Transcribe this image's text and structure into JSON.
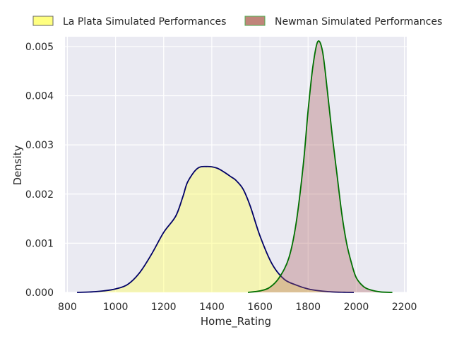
{
  "chart_data": {
    "type": "area",
    "title": "",
    "xlabel": "Home_Rating",
    "ylabel": "Density",
    "xlim": [
      790,
      2210
    ],
    "ylim": [
      0,
      0.0052
    ],
    "xticks": [
      800,
      1000,
      1200,
      1400,
      1600,
      1800,
      2000,
      2200
    ],
    "yticks": [
      0.0,
      0.001,
      0.002,
      0.003,
      0.004,
      0.005
    ],
    "ytick_labels": [
      "0.000",
      "0.001",
      "0.002",
      "0.003",
      "0.004",
      "0.005"
    ],
    "grid": true,
    "legend_position": "top, outside plot",
    "series": [
      {
        "name": "La Plata Simulated Performances",
        "fill_color": "#ffff66",
        "fill_opacity": 0.45,
        "line_color": "#000066",
        "edge_color": "#555555",
        "x": [
          840,
          900,
          950,
          1000,
          1050,
          1100,
          1150,
          1200,
          1250,
          1280,
          1300,
          1340,
          1380,
          1420,
          1450,
          1480,
          1500,
          1530,
          1560,
          1600,
          1650,
          1700,
          1750,
          1800,
          1850,
          1900,
          1950,
          1990
        ],
        "y": [
          0.0,
          1e-05,
          3e-05,
          7e-05,
          0.00016,
          0.0004,
          0.00078,
          0.00122,
          0.00155,
          0.00195,
          0.00225,
          0.00252,
          0.00256,
          0.00253,
          0.00245,
          0.00235,
          0.00228,
          0.0021,
          0.00175,
          0.00115,
          0.00058,
          0.00027,
          0.00015,
          7e-05,
          3e-05,
          1e-05,
          3e-06,
          0.0
        ]
      },
      {
        "name": "Newman Simulated Performances",
        "fill_color": "#b06060",
        "fill_opacity": 0.35,
        "line_color": "#007000",
        "edge_color": "#4caf50",
        "x": [
          1550,
          1600,
          1640,
          1680,
          1720,
          1750,
          1780,
          1800,
          1820,
          1840,
          1860,
          1880,
          1900,
          1920,
          1940,
          1960,
          1980,
          2000,
          2030,
          2060,
          2100,
          2150
        ],
        "y": [
          0.0,
          3e-05,
          0.0001,
          0.0003,
          0.0007,
          0.0014,
          0.0026,
          0.0037,
          0.0046,
          0.0051,
          0.0049,
          0.0041,
          0.0032,
          0.0024,
          0.0016,
          0.001,
          0.0006,
          0.0003,
          0.00012,
          5e-05,
          1e-05,
          0.0
        ]
      }
    ]
  }
}
